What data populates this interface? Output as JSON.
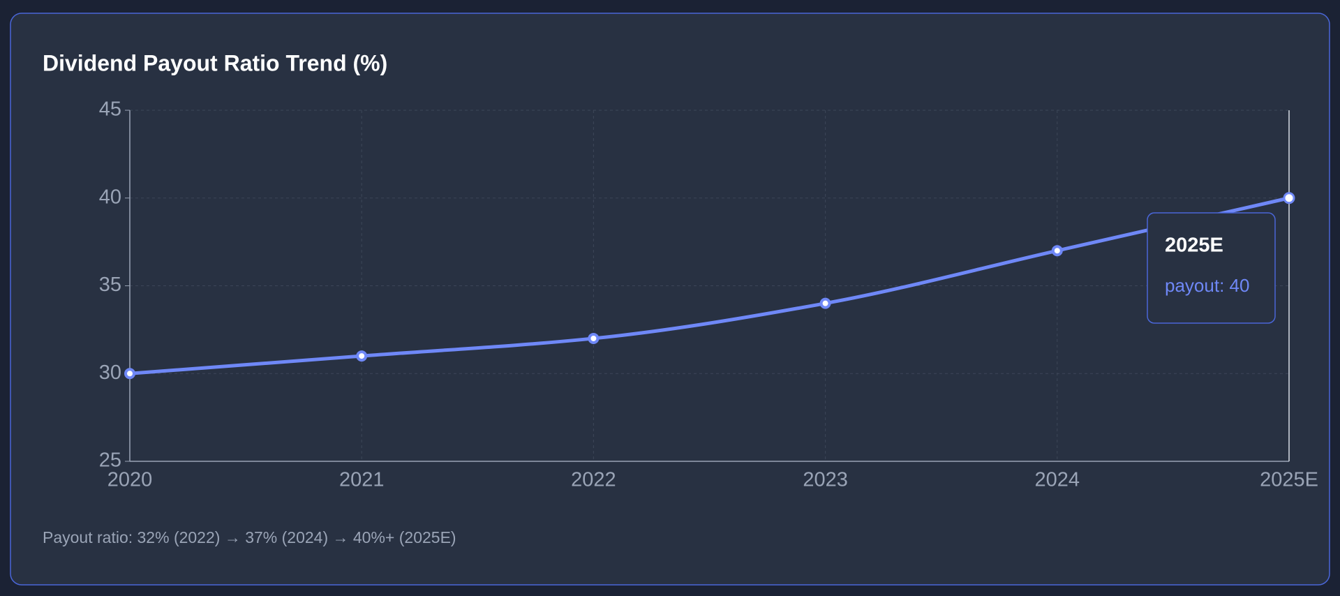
{
  "chart_data": {
    "type": "line",
    "title": "Dividend Payout Ratio Trend (%)",
    "categories": [
      "2020",
      "2021",
      "2022",
      "2023",
      "2024",
      "2025E"
    ],
    "series": [
      {
        "name": "payout",
        "color": "#6f88f7",
        "values": [
          30,
          31,
          32,
          34,
          37,
          40
        ]
      }
    ],
    "ylim": [
      25,
      45
    ],
    "yticks": [
      25,
      30,
      35,
      40,
      45
    ],
    "grid": true,
    "note": "Payout ratio: 32% (2022) → 37% (2024) → 40%+ (2025E)"
  }
}
